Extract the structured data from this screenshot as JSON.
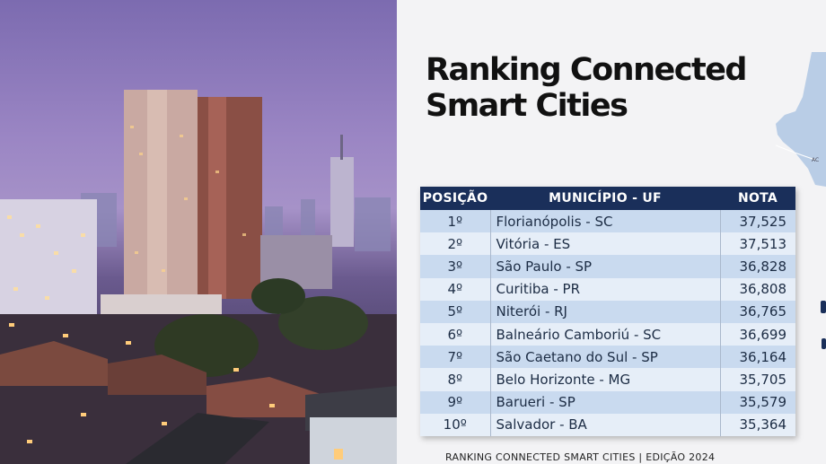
{
  "title_line1": "Ranking Connected",
  "title_line2": "Smart Cities",
  "table": {
    "headers": [
      "POSIÇÃO",
      "MUNICÍPIO - UF",
      "NOTA"
    ],
    "rows": [
      {
        "pos": "1º",
        "mun": "Florianópolis - SC",
        "nota": "37,525"
      },
      {
        "pos": "2º",
        "mun": "Vitória - ES",
        "nota": "37,513"
      },
      {
        "pos": "3º",
        "mun": "São Paulo - SP",
        "nota": "36,828"
      },
      {
        "pos": "4º",
        "mun": "Curitiba - PR",
        "nota": "36,808"
      },
      {
        "pos": "5º",
        "mun": "Niterói - RJ",
        "nota": "36,765"
      },
      {
        "pos": "6º",
        "mun": "Balneário Camboriú - SC",
        "nota": "36,699"
      },
      {
        "pos": "7º",
        "mun": "São Caetano do Sul - SP",
        "nota": "36,164"
      },
      {
        "pos": "8º",
        "mun": "Belo Horizonte - MG",
        "nota": "35,705"
      },
      {
        "pos": "9º",
        "mun": "Barueri - SP",
        "nota": "35,579"
      },
      {
        "pos": "10º",
        "mun": "Salvador - BA",
        "nota": "35,364"
      }
    ]
  },
  "footer": "RANKING CONNECTED SMART CITIES | EDIÇÃO 2024",
  "map_label": "AC",
  "colors": {
    "header_bg": "#1a2f5a",
    "row_odd": "#c9daef",
    "row_even": "#e6eef8",
    "map": "#b9cde6"
  }
}
